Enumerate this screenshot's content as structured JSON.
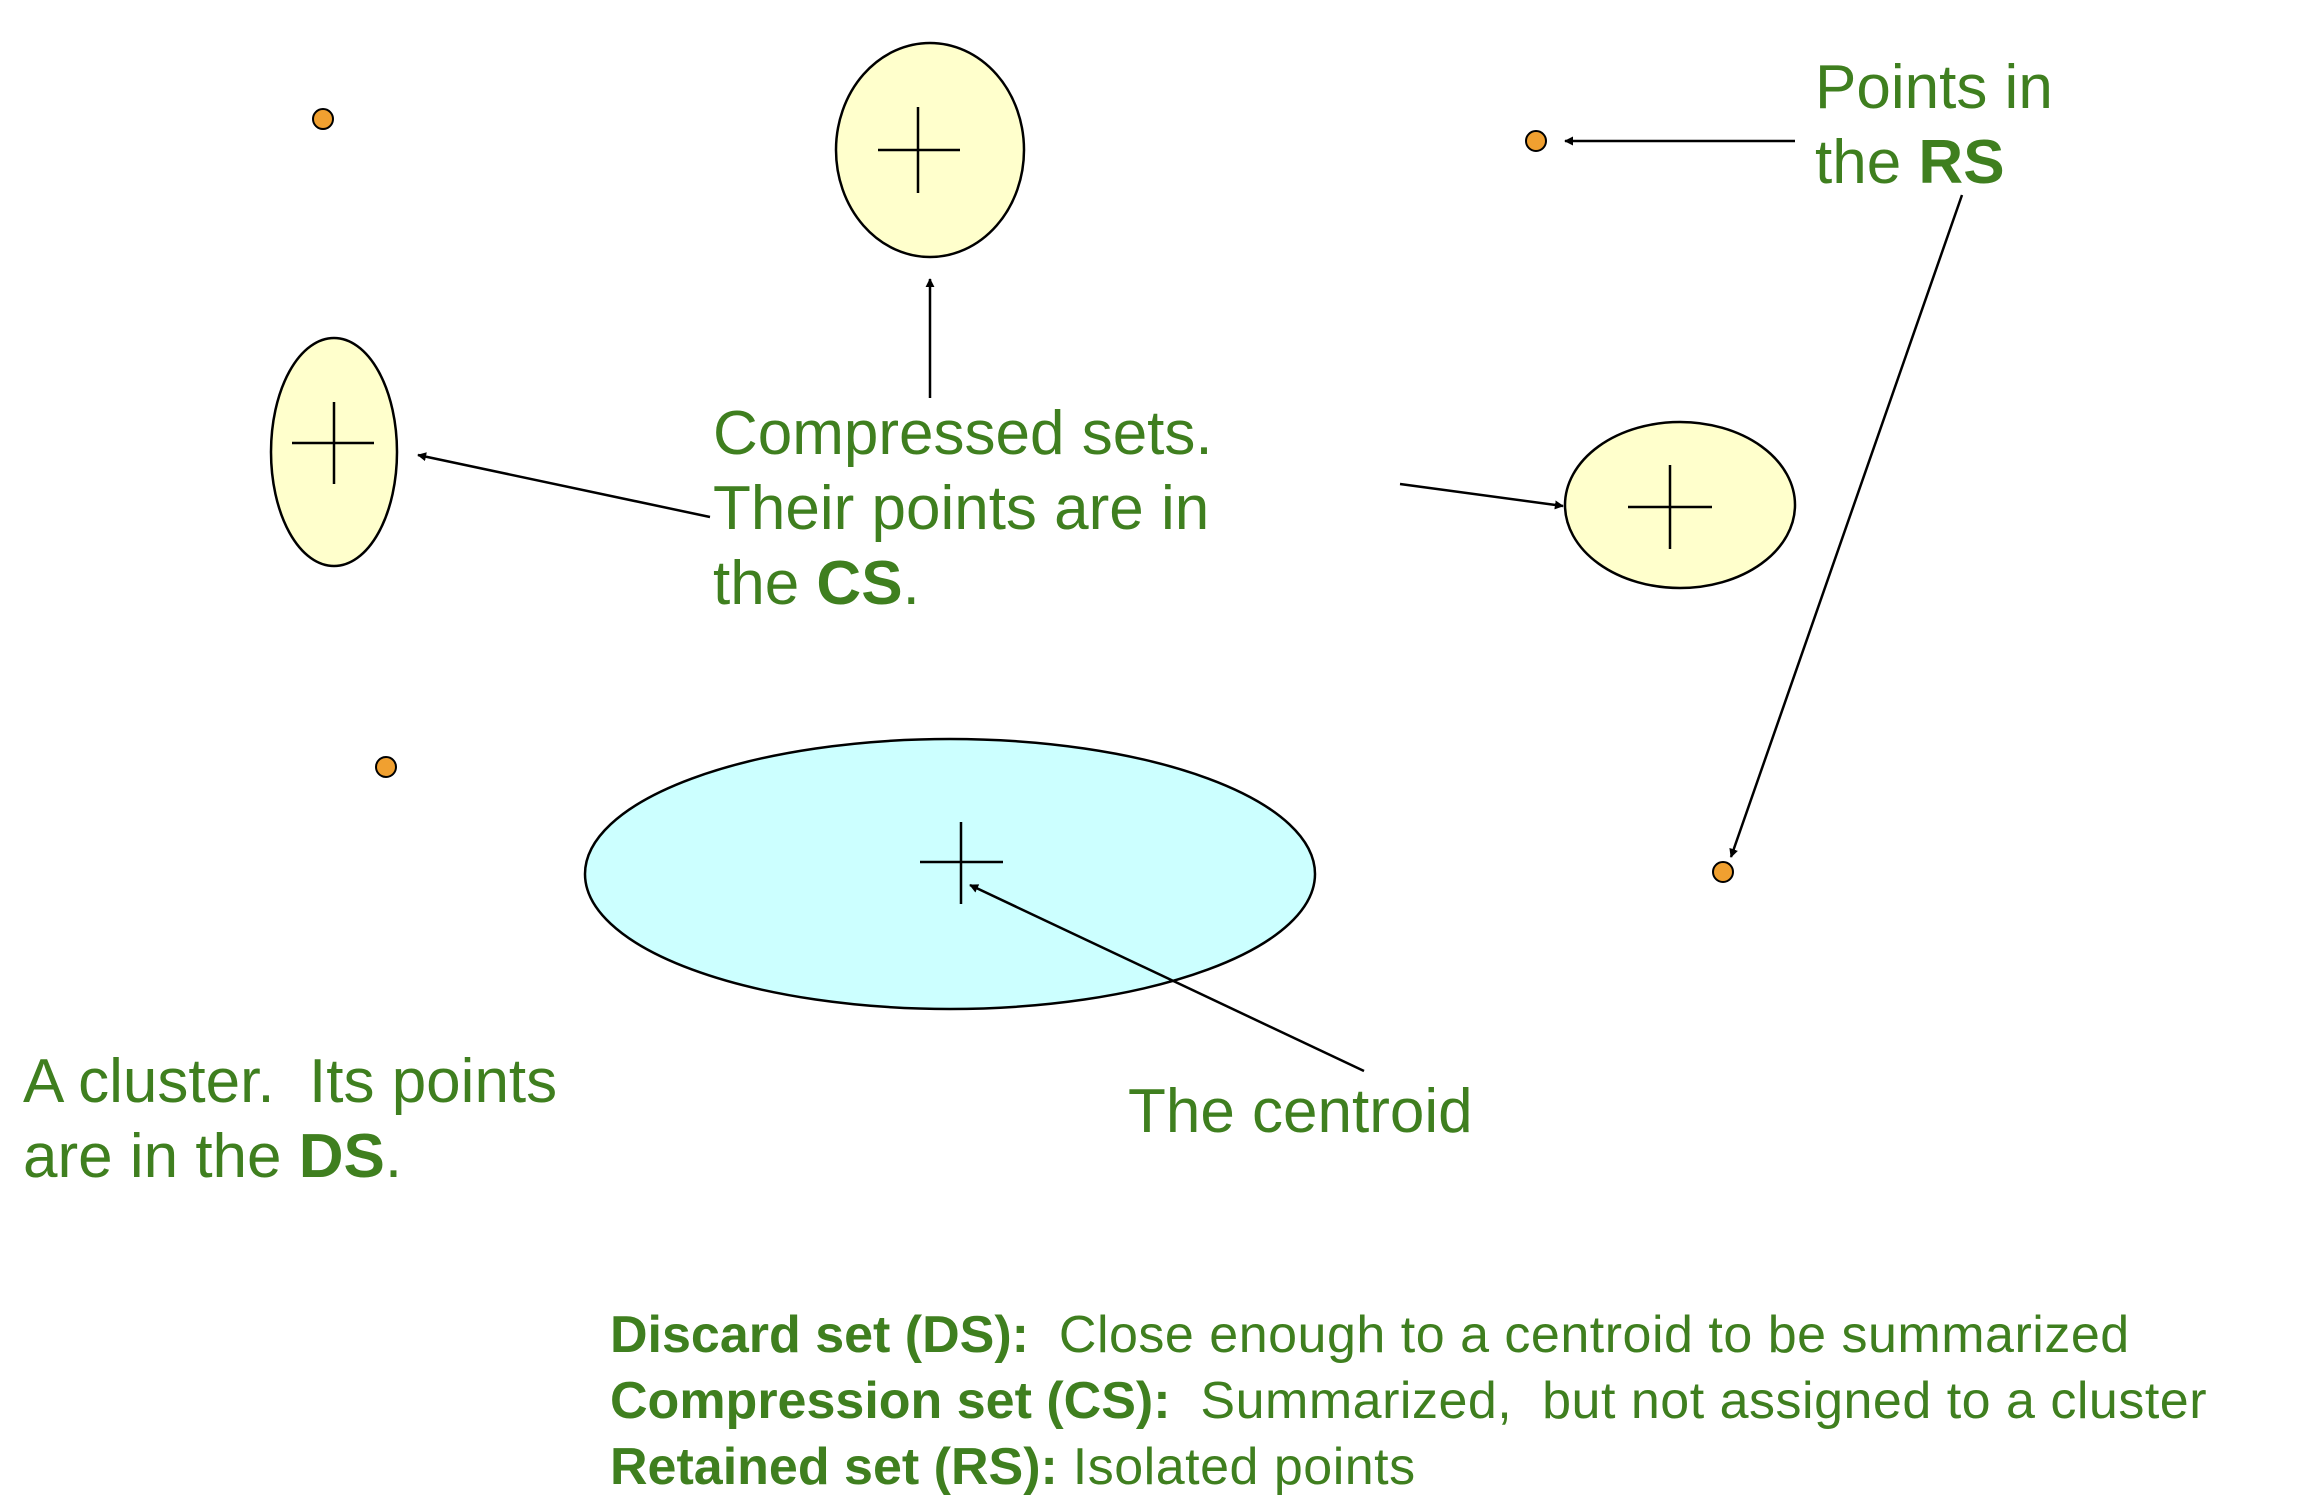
{
  "colors": {
    "text": "#3f7f1f",
    "cs_fill": "#ffffcc",
    "ds_fill": "#ccffff",
    "rs_point": "#f0a030",
    "stroke": "#000000"
  },
  "labels": {
    "rs": {
      "line1": "Points in",
      "line2_prefix": "the ",
      "line2_bold": "RS"
    },
    "cs": {
      "line1": "Compressed sets.",
      "line2": "Their points are in",
      "line3_prefix": "the ",
      "line3_bold": "CS",
      "line3_suffix": "."
    },
    "ds": {
      "line1": "A cluster.  Its points",
      "line2_prefix": "are in the ",
      "line2_bold": "DS",
      "line2_suffix": "."
    },
    "centroid": "The centroid"
  },
  "legend": [
    {
      "term": "Discard set (DS):",
      "desc": "  Close enough to a centroid to be summarized"
    },
    {
      "term": "Compression set (CS):",
      "desc": "  Summarized,  but not assigned to a cluster"
    },
    {
      "term": "Retained set (RS):",
      "desc": " Isolated points"
    }
  ]
}
